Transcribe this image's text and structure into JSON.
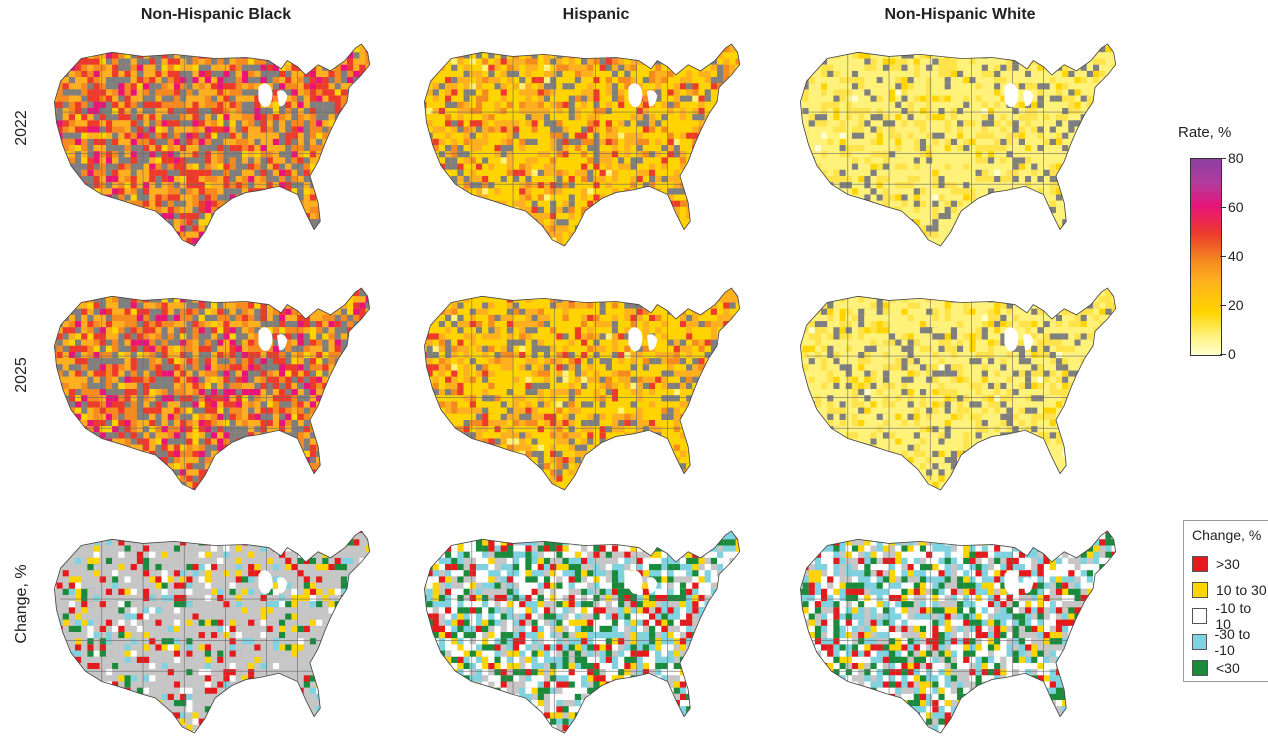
{
  "columns": [
    "Non-Hispanic Black",
    "Hispanic",
    "Non-Hispanic White"
  ],
  "rows": [
    "2022",
    "2025",
    "Change, %"
  ],
  "rate_legend": {
    "title": "Rate, %",
    "ticks": [
      "80",
      "60",
      "40",
      "20",
      "0"
    ]
  },
  "change_legend": {
    "title": "Change, %",
    "items": [
      {
        "label": ">30",
        "color": "#e41a1c"
      },
      {
        "label": "10 to 30",
        "color": "#ffd500"
      },
      {
        "label": "-10 to 10",
        "color": "#ffffff"
      },
      {
        "label": "-30 to -10",
        "color": "#7fd3e0"
      },
      {
        "label": "<30",
        "color": "#1a8a3c"
      }
    ]
  },
  "colors": {
    "no_data": "#7f7f7f",
    "change_no_data": "#c6c6c6",
    "rate_low": "#fff27a",
    "rate_mid": "#ffb020",
    "rate_high": "#ec3a2c",
    "rate_top": "#8e3ea3"
  }
}
